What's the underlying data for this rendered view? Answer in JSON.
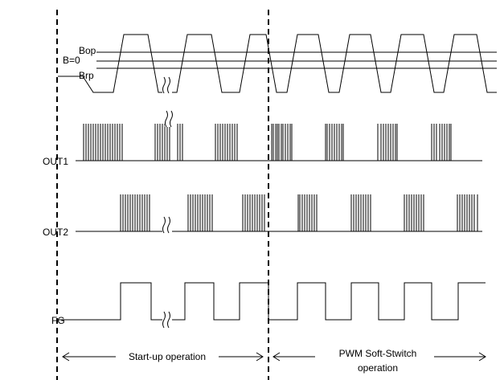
{
  "signals": {
    "bop": "Bop",
    "bzero": "B=0",
    "brp": "Brp",
    "out1": "OUT1",
    "out2": "OUT2",
    "fg": "FG"
  },
  "phases": {
    "startup": "Start-up operation",
    "pwm_line1": "PWM Soft-Stwitch",
    "pwm_line2": "operation"
  }
}
